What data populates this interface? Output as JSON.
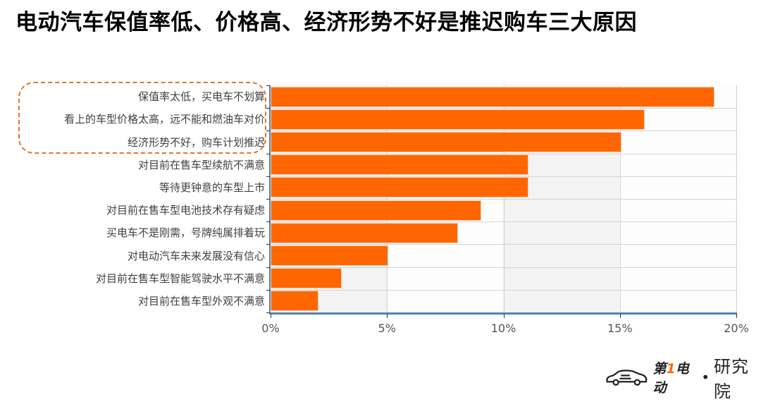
{
  "title": "电动汽车保值率低、价格高、经济形势不好是推迟购车三大原因",
  "chart_data": {
    "type": "bar",
    "orientation": "horizontal",
    "title": "电动汽车保值率低、价格高、经济形势不好是推迟购车三大原因",
    "categories": [
      "保值率太低，买电车不划算",
      "看上的车型价格太高，远不能和燃油车对价",
      "经济形势不好，购车计划推迟",
      "对目前在售车型续航不满意",
      "等待更钟意的车型上市",
      "对目前在售车型电池技术存有疑虑",
      "买电车不是刚需，号牌纯属排着玩",
      "对电动汽车未来发展没有信心",
      "对目前在售车型智能驾驶水平不满意",
      "对目前在售车型外观不满意"
    ],
    "values": [
      19,
      16,
      15,
      11,
      11,
      9,
      8,
      5,
      3,
      2
    ],
    "unit": "%",
    "xlabel": "",
    "ylabel": "",
    "xlim": [
      0,
      20
    ],
    "xticks": [
      "0%",
      "5%",
      "10%",
      "15%",
      "20%"
    ],
    "grid": true,
    "legend": null,
    "bar_color": "#ff6600",
    "annotations": [
      "dashed orange box highlighting the top three reasons"
    ]
  },
  "colors": {
    "bar": "#ff6600",
    "axis": "#4f86b8",
    "highlight_box": "#e8722a",
    "band": "#f3f3f4"
  },
  "watermark": {
    "brand_prefix": "第",
    "brand_one": "1",
    "brand_suffix": "电动",
    "separator": "•",
    "institute": "研究院"
  }
}
